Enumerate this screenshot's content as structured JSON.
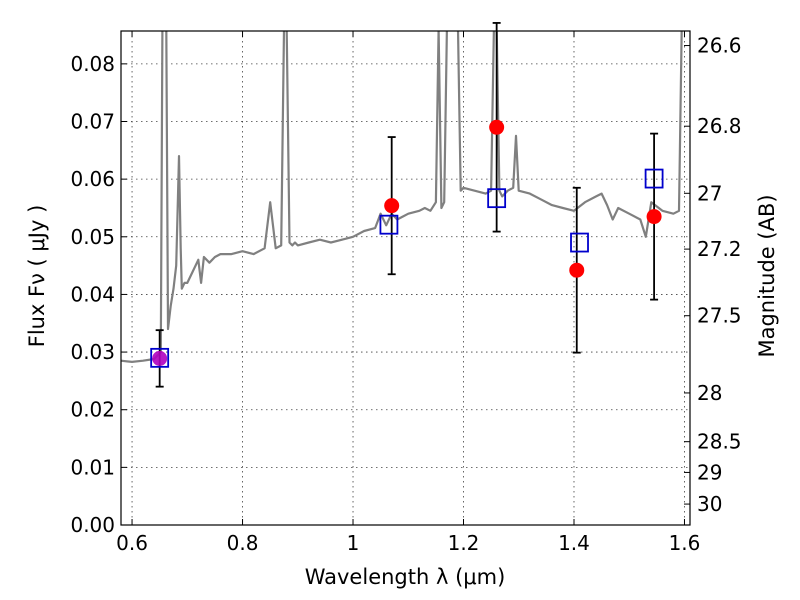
{
  "chart_data": {
    "type": "scatter",
    "title": "",
    "xlabel": "Wavelength  λ (μm)",
    "ylabel": "Flux  Fν  ( μJy )",
    "ylabel2": "Magnitude (AB)",
    "xlim": [
      0.58,
      1.61
    ],
    "ylim": [
      0.0,
      0.0857
    ],
    "grid": true,
    "x_ticks": [
      0.6,
      0.8,
      1.0,
      1.2,
      1.4,
      1.6
    ],
    "x_tick_labels": [
      "0.6",
      "0.8",
      "1",
      "1.2",
      "1.4",
      "1.6"
    ],
    "y_ticks": [
      0.0,
      0.01,
      0.02,
      0.03,
      0.04,
      0.05,
      0.06,
      0.07,
      0.08
    ],
    "y_tick_labels": [
      "0.00",
      "0.01",
      "0.02",
      "0.03",
      "0.04",
      "0.05",
      "0.06",
      "0.07",
      "0.08"
    ],
    "mag_ticks": [
      26.6,
      26.8,
      27,
      27.2,
      27.5,
      28,
      28.5,
      29,
      30
    ],
    "mag_tick_labels": [
      "26.6",
      "26.8",
      "27",
      "27.2",
      "27.5",
      "28",
      "28.5",
      "29",
      "30"
    ],
    "colors": {
      "spectrum": "#808080",
      "observed": "#ff0000",
      "model": "#0000cc",
      "errorbar": "#000000"
    },
    "observed": [
      {
        "x": 0.65,
        "y": 0.0289,
        "yerr_low": 0.0049,
        "yerr_high": 0.0049
      },
      {
        "x": 1.07,
        "y": 0.0554,
        "yerr_low": 0.0119,
        "yerr_high": 0.0119
      },
      {
        "x": 1.26,
        "y": 0.069,
        "yerr_low": 0.0181,
        "yerr_high": 0.0181
      },
      {
        "x": 1.405,
        "y": 0.0442,
        "yerr_low": 0.0143,
        "yerr_high": 0.0143
      },
      {
        "x": 1.545,
        "y": 0.0535,
        "yerr_low": 0.0144,
        "yerr_high": 0.0144
      }
    ],
    "model_points": [
      {
        "x": 0.65,
        "y": 0.029
      },
      {
        "x": 1.065,
        "y": 0.0521
      },
      {
        "x": 1.26,
        "y": 0.0567
      },
      {
        "x": 1.41,
        "y": 0.049
      },
      {
        "x": 1.545,
        "y": 0.0601
      }
    ],
    "spectrum": {
      "x": [
        0.58,
        0.6,
        0.62,
        0.64,
        0.652,
        0.655,
        0.658,
        0.66,
        0.662,
        0.665,
        0.67,
        0.675,
        0.68,
        0.685,
        0.688,
        0.69,
        0.695,
        0.7,
        0.71,
        0.72,
        0.725,
        0.73,
        0.74,
        0.75,
        0.76,
        0.78,
        0.8,
        0.82,
        0.84,
        0.85,
        0.86,
        0.87,
        0.875,
        0.88,
        0.885,
        0.89,
        0.895,
        0.9,
        0.92,
        0.94,
        0.96,
        0.98,
        1.0,
        1.02,
        1.04,
        1.05,
        1.06,
        1.07,
        1.08,
        1.09,
        1.1,
        1.12,
        1.13,
        1.14,
        1.15,
        1.155,
        1.16,
        1.165,
        1.17,
        1.175,
        1.18,
        1.185,
        1.19,
        1.195,
        1.2,
        1.22,
        1.24,
        1.25,
        1.255,
        1.26,
        1.265,
        1.27,
        1.28,
        1.29,
        1.295,
        1.3,
        1.32,
        1.34,
        1.36,
        1.38,
        1.4,
        1.42,
        1.44,
        1.45,
        1.46,
        1.47,
        1.48,
        1.5,
        1.52,
        1.53,
        1.54,
        1.56,
        1.58,
        1.59,
        1.595,
        1.6,
        1.61
      ],
      "y": [
        0.0285,
        0.0283,
        0.0285,
        0.0288,
        0.03,
        0.086,
        0.086,
        0.086,
        0.086,
        0.034,
        0.038,
        0.041,
        0.045,
        0.064,
        0.048,
        0.041,
        0.042,
        0.042,
        0.044,
        0.046,
        0.042,
        0.0465,
        0.0455,
        0.0465,
        0.047,
        0.047,
        0.0475,
        0.047,
        0.048,
        0.056,
        0.048,
        0.0485,
        0.086,
        0.086,
        0.049,
        0.0485,
        0.049,
        0.0485,
        0.049,
        0.0495,
        0.049,
        0.0495,
        0.05,
        0.051,
        0.0515,
        0.054,
        0.052,
        0.054,
        0.053,
        0.0535,
        0.054,
        0.0545,
        0.055,
        0.0545,
        0.056,
        0.086,
        0.055,
        0.056,
        0.086,
        0.086,
        0.086,
        0.086,
        0.086,
        0.058,
        0.0585,
        0.058,
        0.0575,
        0.058,
        0.086,
        0.086,
        0.058,
        0.057,
        0.058,
        0.0585,
        0.0675,
        0.058,
        0.0575,
        0.0565,
        0.0555,
        0.055,
        0.0545,
        0.056,
        0.057,
        0.0575,
        0.0555,
        0.053,
        0.055,
        0.054,
        0.053,
        0.05,
        0.056,
        0.0545,
        0.054,
        0.0545,
        0.086,
        0.086,
        0.086
      ]
    }
  }
}
